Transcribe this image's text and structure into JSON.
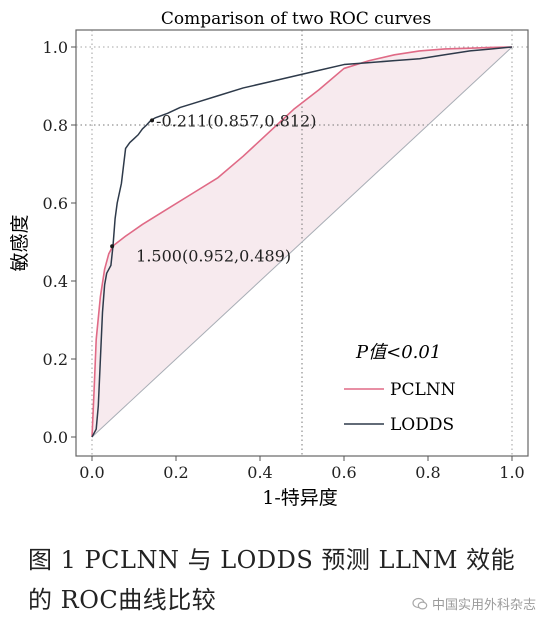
{
  "chart_data": {
    "type": "line",
    "title": "Comparison of two ROC curves",
    "xlabel": "1-特异度",
    "ylabel": "敏感度",
    "xlim": [
      0,
      1
    ],
    "ylim": [
      0,
      1
    ],
    "x_ticks": [
      "0.0",
      "0.2",
      "0.4",
      "0.6",
      "0.8",
      "1.0"
    ],
    "y_ticks": [
      "0.0",
      "0.2",
      "0.4",
      "0.6",
      "0.8",
      "1.0"
    ],
    "grid": "dotted reference lines at 0.5 (x) and 0.8 (y)",
    "legend_position": "bottom-right",
    "legend_title": "P值<0.01",
    "series": [
      {
        "name": "PCLNN",
        "color": "#e06a86",
        "x": [
          0,
          0.005,
          0.01,
          0.02,
          0.03,
          0.04,
          0.05,
          0.08,
          0.12,
          0.18,
          0.24,
          0.3,
          0.36,
          0.42,
          0.48,
          0.54,
          0.6,
          0.66,
          0.72,
          0.78,
          0.84,
          0.9,
          0.95,
          1.0
        ],
        "y": [
          0,
          0.12,
          0.25,
          0.36,
          0.43,
          0.47,
          0.49,
          0.515,
          0.545,
          0.585,
          0.625,
          0.665,
          0.72,
          0.78,
          0.84,
          0.89,
          0.945,
          0.965,
          0.98,
          0.99,
          0.995,
          0.997,
          0.999,
          1.0
        ]
      },
      {
        "name": "LODDS",
        "color": "#2e3a4a",
        "x": [
          0,
          0.01,
          0.015,
          0.02,
          0.025,
          0.03,
          0.035,
          0.04,
          0.045,
          0.05,
          0.055,
          0.06,
          0.07,
          0.08,
          0.09,
          0.1,
          0.11,
          0.12,
          0.13,
          0.14,
          0.15,
          0.18,
          0.21,
          0.24,
          0.3,
          0.36,
          0.42,
          0.48,
          0.54,
          0.6,
          0.66,
          0.72,
          0.78,
          0.84,
          0.9,
          0.95,
          1.0
        ],
        "y": [
          0,
          0.02,
          0.08,
          0.2,
          0.32,
          0.39,
          0.42,
          0.43,
          0.44,
          0.49,
          0.56,
          0.6,
          0.65,
          0.74,
          0.755,
          0.765,
          0.775,
          0.79,
          0.8,
          0.812,
          0.818,
          0.83,
          0.845,
          0.855,
          0.875,
          0.895,
          0.91,
          0.925,
          0.94,
          0.955,
          0.96,
          0.965,
          0.97,
          0.98,
          0.99,
          0.995,
          1.0
        ]
      }
    ],
    "reference_line": {
      "x": [
        0,
        1
      ],
      "y": [
        0,
        1
      ]
    },
    "annotations": [
      {
        "text": "-0.211(0.857,0.812)",
        "x": 0.143,
        "y": 0.812
      },
      {
        "text": "1.500(0.952,0.489)",
        "x": 0.048,
        "y": 0.489
      }
    ]
  },
  "caption": "图 1   PCLNN 与 LODDS 预测 LLNM 效能的 ROC曲线比较",
  "watermark": "中国实用外科杂志"
}
